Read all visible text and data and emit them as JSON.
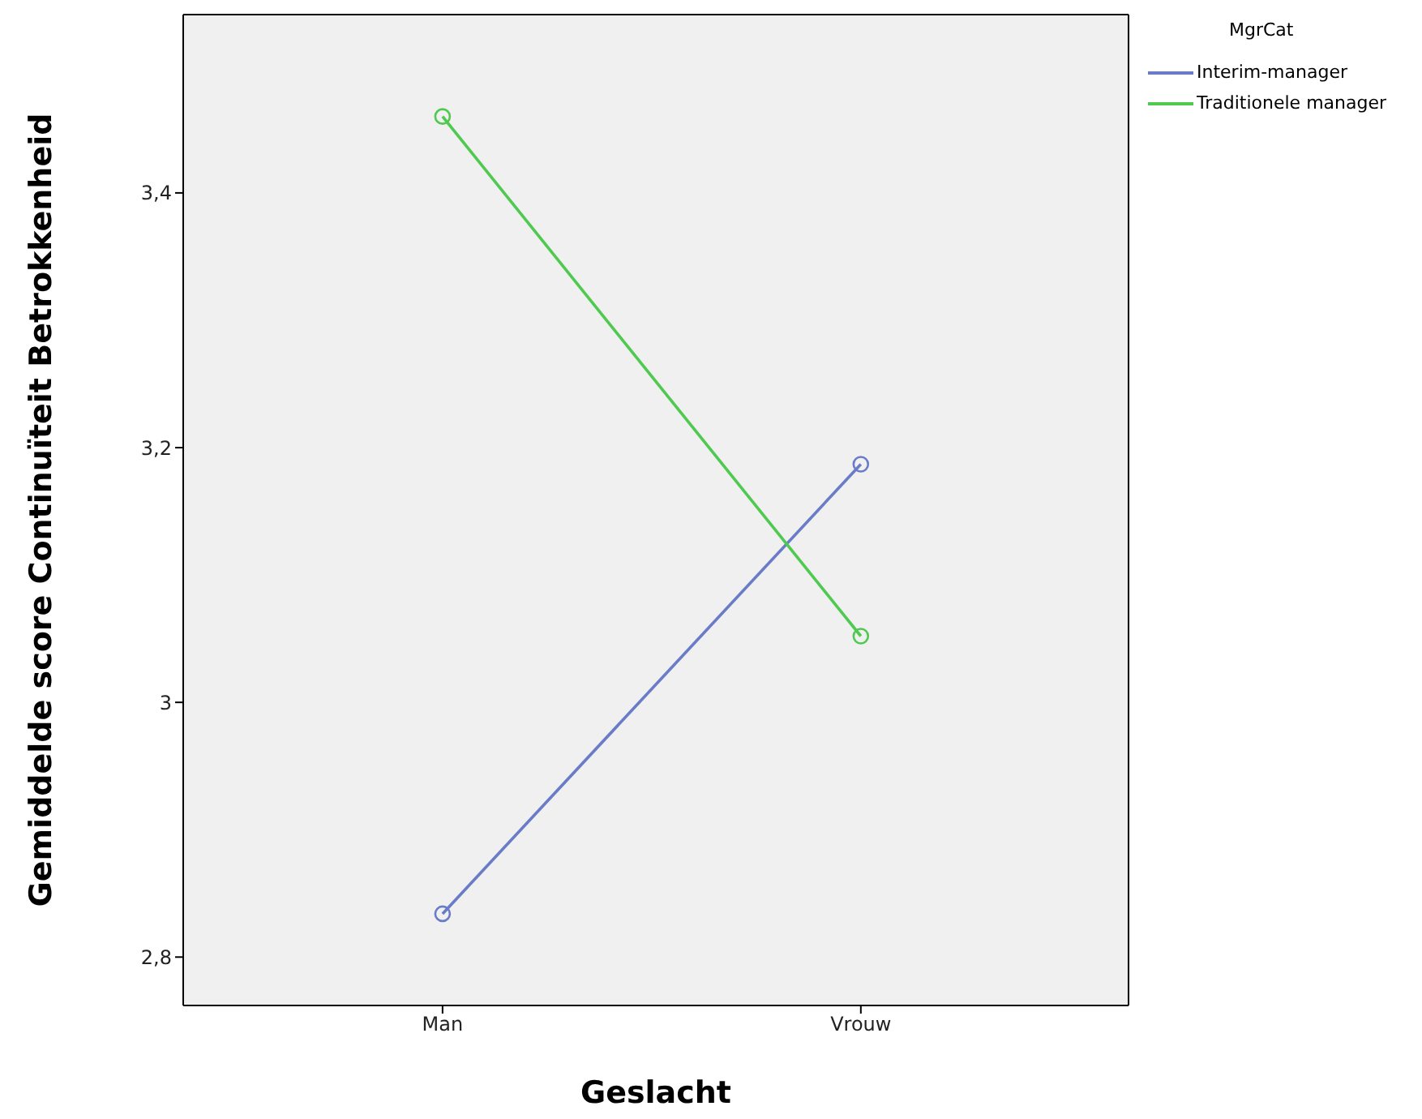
{
  "chart_data": {
    "type": "line",
    "xlabel": "Geslacht",
    "ylabel": "Gemiddelde score Continuïteit Betrokkenheid",
    "legend_title": "MgrCat",
    "categories": [
      "Man",
      "Vrouw"
    ],
    "series": [
      {
        "name": "Interim-manager",
        "color": "#6a7cc8",
        "values": [
          2.834,
          3.187
        ]
      },
      {
        "name": "Traditionele manager",
        "color": "#4fc94f",
        "values": [
          3.46,
          3.052
        ]
      }
    ],
    "ylim": [
      2.762,
      3.54
    ],
    "yticks": [
      {
        "value": 2.8,
        "label": "2,8"
      },
      3,
      {
        "value": 3.2,
        "label": "3,2"
      },
      {
        "value": 3.4,
        "label": "3,4"
      }
    ],
    "grid": false,
    "legend": "top right",
    "marker": "circle",
    "line_style": "solid"
  }
}
